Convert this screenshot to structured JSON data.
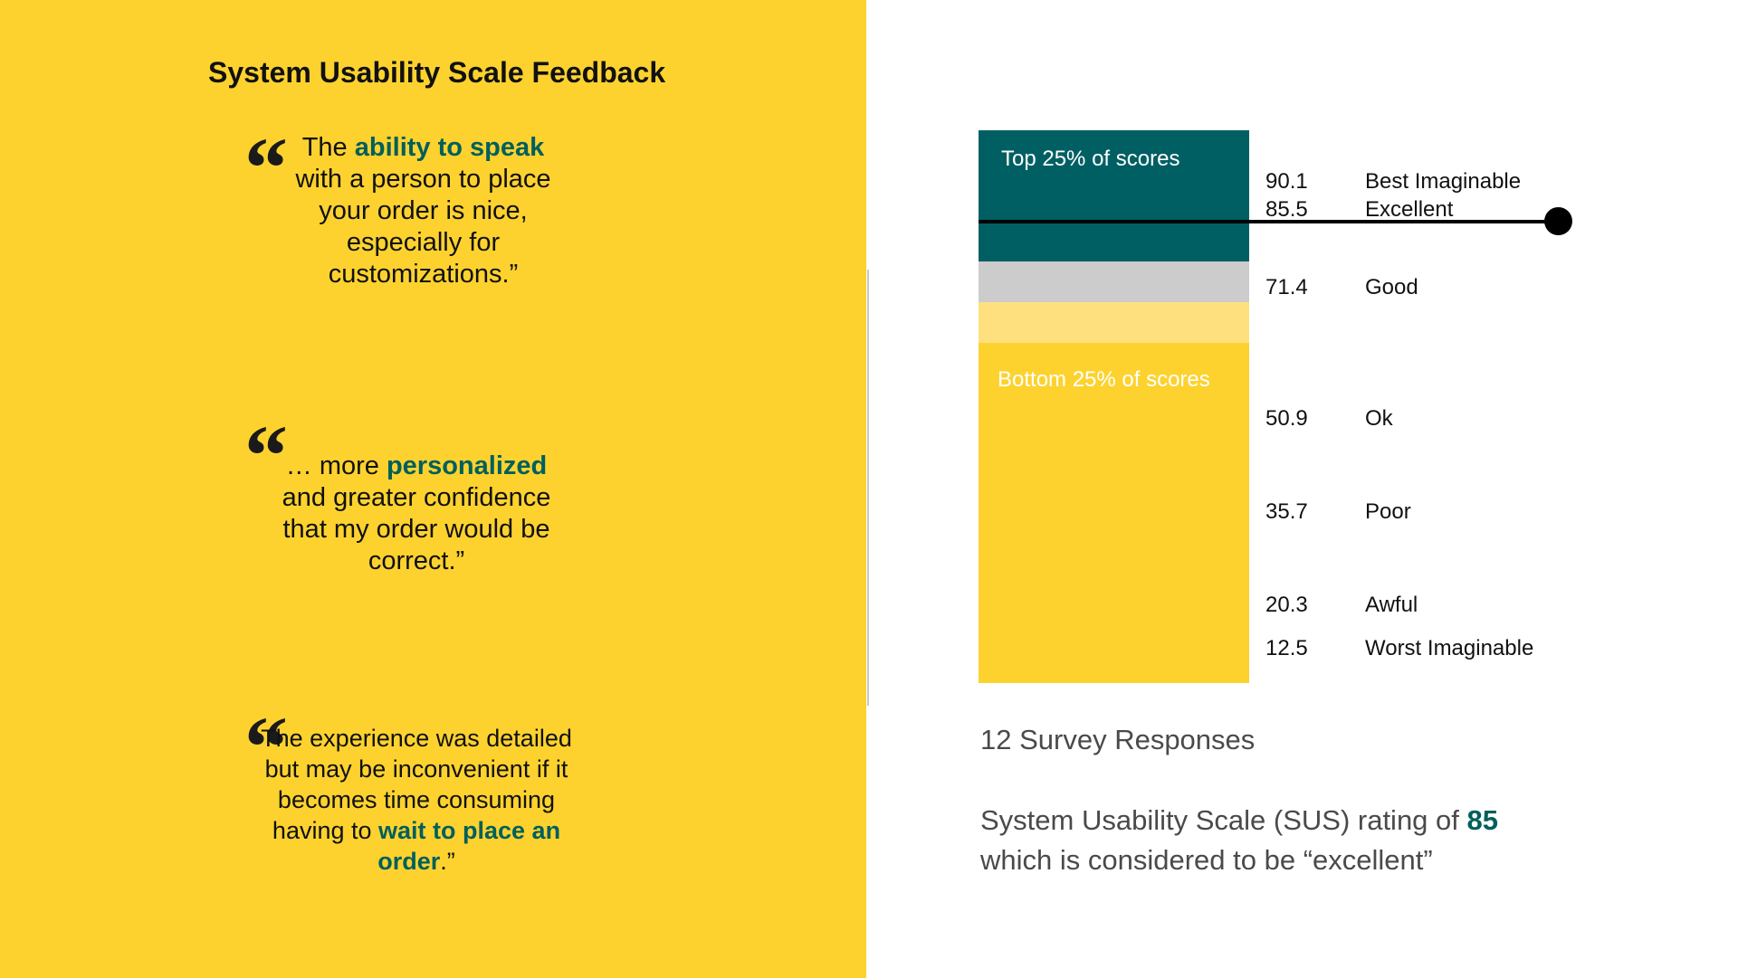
{
  "colors": {
    "left_panel_bg": "#fdd22f",
    "highlight_green": "#005f5b",
    "top_band": "#005f63",
    "good_band": "#cccccc",
    "light_yellow_band": "#fee17e",
    "bottom_band": "#fdd22f"
  },
  "left": {
    "title": "System Usability Scale Feedback",
    "quote_icon": "left-double-quote-icon",
    "quotes": [
      {
        "parts": [
          {
            "text": "The ",
            "highlight": false
          },
          {
            "text": "ability to speak",
            "highlight": true
          },
          {
            "text": " with a person to place your order is nice, especially for customizations.”",
            "highlight": false
          }
        ]
      },
      {
        "parts": [
          {
            "text": "… more ",
            "highlight": false
          },
          {
            "text": "personalized",
            "highlight": true
          },
          {
            "text": " and greater confidence that my order would be correct.”",
            "highlight": false
          }
        ]
      },
      {
        "parts": [
          {
            "text": "The experience was detailed but may be inconvenient if it becomes time consuming having to ",
            "highlight": false
          },
          {
            "text": "wait to place an order",
            "highlight": true
          },
          {
            "text": ".”",
            "highlight": false
          }
        ]
      }
    ]
  },
  "right": {
    "bands": {
      "top_label": "Top 25% of scores",
      "bottom_label": "Bottom 25% of scores"
    },
    "scale": [
      {
        "score": "90.1",
        "grade": "Best Imaginable"
      },
      {
        "score": "85.5",
        "grade": "Excellent"
      },
      {
        "score": "71.4",
        "grade": "Good"
      },
      {
        "score": "50.9",
        "grade": "Ok"
      },
      {
        "score": "35.7",
        "grade": "Poor"
      },
      {
        "score": "20.3",
        "grade": "Awful"
      },
      {
        "score": "12.5",
        "grade": "Worst Imaginable"
      }
    ],
    "marker_score": 85,
    "responses": "12 Survey Responses",
    "summary_line1_prefix": "System Usability Scale (SUS) rating of ",
    "summary_rating": "85",
    "summary_line2": "which is considered to be “excellent”"
  }
}
